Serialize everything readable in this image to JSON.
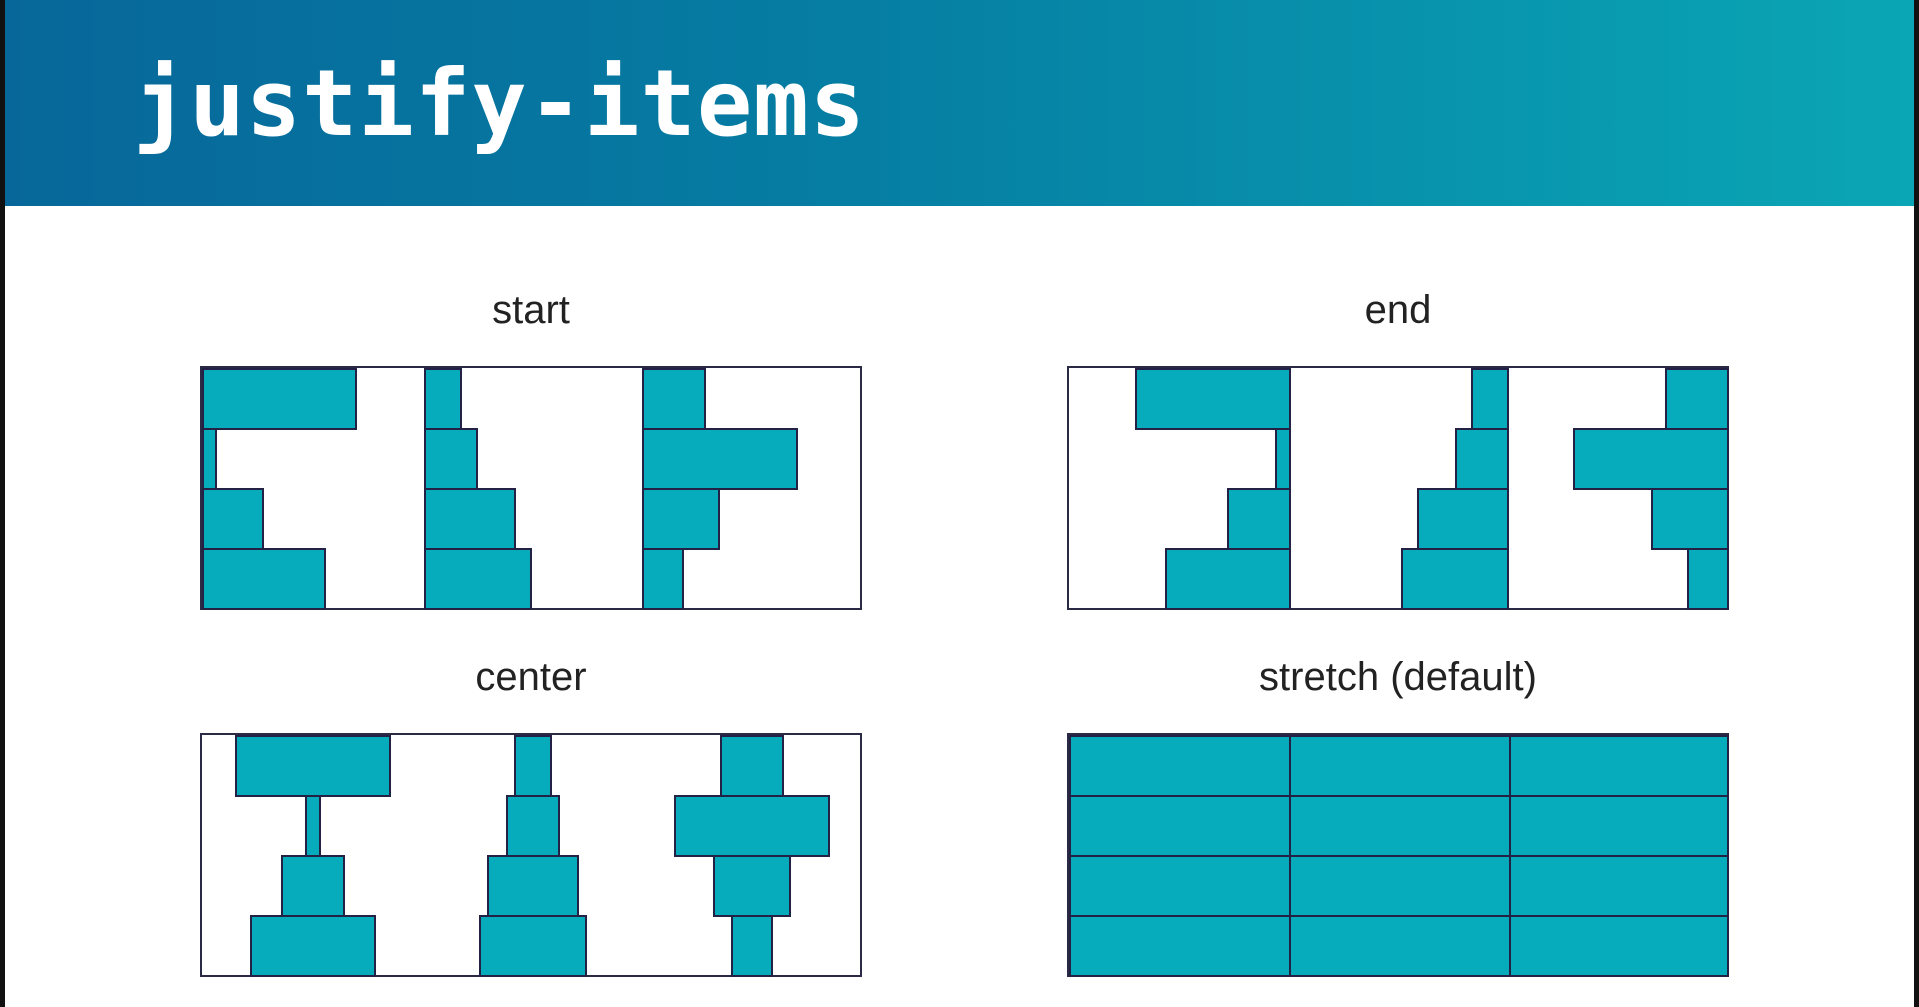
{
  "title": "justify-items",
  "colors": {
    "header_start": "#07679a",
    "header_end": "#0aa6b5",
    "item_fill": "#06acbc",
    "item_border": "#232244"
  },
  "panels": [
    {
      "id": "start",
      "label": "start"
    },
    {
      "id": "end",
      "label": "end"
    },
    {
      "id": "center",
      "label": "center"
    },
    {
      "id": "stretch",
      "label": "stretch (default)"
    }
  ]
}
